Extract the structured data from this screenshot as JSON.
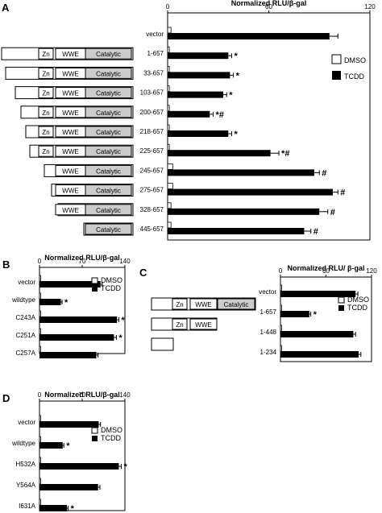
{
  "colors": {
    "tcdd": "#000000",
    "dmso": "#ffffff",
    "catalytic_fill": "#cccccc",
    "axis": "#000000"
  },
  "legend": {
    "dmso": "DMSO",
    "tcdd": "TCDD"
  },
  "domain_labels": {
    "zn": "Zn",
    "wwe": "WWE",
    "catalytic": "Catalytic"
  },
  "chart_data": [
    {
      "panel": "A",
      "type": "bar",
      "orientation": "horizontal",
      "title": "Normalized RLU/β-gal",
      "xlim": [
        0,
        120
      ],
      "ticks": [
        0,
        60,
        120
      ],
      "legend_position": "right",
      "categories": [
        "vector",
        "1-657",
        "33-657",
        "103-657",
        "200-657",
        "218-657",
        "225-657",
        "245-657",
        "275-657",
        "328-657",
        "445-657"
      ],
      "series": [
        {
          "name": "DMSO",
          "values": [
            2,
            1,
            1,
            1,
            1,
            1,
            1,
            3,
            3,
            2,
            2
          ],
          "errors": [
            0.5,
            0.3,
            0.3,
            0.3,
            0.3,
            0.3,
            0.3,
            0.8,
            0.8,
            0.5,
            0.5
          ]
        },
        {
          "name": "TCDD",
          "values": [
            96,
            36,
            37,
            33,
            25,
            36,
            61,
            87,
            98,
            90,
            81
          ],
          "errors": [
            5,
            2,
            2,
            2,
            2,
            2,
            5,
            3,
            3,
            5,
            4
          ]
        }
      ],
      "annotations": [
        "",
        "*",
        "*",
        "*",
        "*#",
        "*",
        "*#",
        "#",
        "#",
        "#",
        "#"
      ]
    },
    {
      "panel": "B",
      "type": "bar",
      "orientation": "horizontal",
      "title": "Normalized RLU/β-gal",
      "xlim": [
        0,
        140
      ],
      "ticks": [
        0,
        70,
        140
      ],
      "legend_position": "top-right",
      "categories": [
        "vector",
        "wildtype",
        "C243A",
        "C251A",
        "C257A"
      ],
      "series": [
        {
          "name": "DMSO",
          "values": [
            1,
            1,
            1,
            1,
            1
          ],
          "errors": [
            0.3,
            0.3,
            0.3,
            0.3,
            0.3
          ]
        },
        {
          "name": "TCDD",
          "values": [
            100,
            35,
            127,
            122,
            93
          ],
          "errors": [
            3,
            2,
            3,
            4,
            3
          ]
        }
      ],
      "annotations": [
        "",
        "*",
        "*",
        "*",
        ""
      ]
    },
    {
      "panel": "C",
      "type": "bar",
      "orientation": "horizontal",
      "title": "Normalized RLU/ β-gal",
      "xlim": [
        0,
        120
      ],
      "ticks": [
        0,
        60,
        120
      ],
      "legend_position": "top-right",
      "categories": [
        "vector",
        "1-657",
        "1-448",
        "1-234"
      ],
      "series": [
        {
          "name": "DMSO",
          "values": [
            1,
            1,
            1,
            1
          ],
          "errors": [
            0.3,
            0.3,
            0.3,
            0.3
          ]
        },
        {
          "name": "TCDD",
          "values": [
            99,
            38,
            96,
            103
          ],
          "errors": [
            3,
            2,
            3,
            3
          ]
        }
      ],
      "annotations": [
        "",
        "*",
        "",
        ""
      ]
    },
    {
      "panel": "D",
      "type": "bar",
      "orientation": "horizontal",
      "title": "Normalized RLU/β-gal",
      "xlim": [
        0,
        140
      ],
      "ticks": [
        0,
        70,
        140
      ],
      "legend_position": "top-right",
      "categories": [
        "vector",
        "wildtype",
        "H532A",
        "Y564A",
        "I631A"
      ],
      "series": [
        {
          "name": "DMSO",
          "values": [
            1,
            1,
            1,
            1,
            1
          ],
          "errors": [
            0.3,
            0.3,
            0.3,
            0.3,
            0.3
          ]
        },
        {
          "name": "TCDD",
          "values": [
            97,
            38,
            130,
            96,
            45
          ],
          "errors": [
            3,
            2,
            4,
            3,
            2
          ]
        }
      ],
      "annotations": [
        "",
        "*",
        "*",
        "",
        "*"
      ]
    }
  ],
  "constructs_A": [
    {
      "label": "1-657",
      "domains": [
        "zn",
        "wwe",
        "catalytic"
      ]
    },
    {
      "label": "33-657",
      "domains": [
        "zn",
        "wwe",
        "catalytic"
      ]
    },
    {
      "label": "103-657",
      "domains": [
        "zn",
        "wwe",
        "catalytic"
      ]
    },
    {
      "label": "200-657",
      "domains": [
        "zn",
        "wwe",
        "catalytic"
      ]
    },
    {
      "label": "218-657",
      "domains": [
        "zn",
        "wwe",
        "catalytic"
      ]
    },
    {
      "label": "225-657",
      "domains": [
        "zn",
        "wwe",
        "catalytic"
      ]
    },
    {
      "label": "245-657",
      "domains": [
        "wwe",
        "catalytic"
      ]
    },
    {
      "label": "275-657",
      "domains": [
        "wwe",
        "catalytic"
      ]
    },
    {
      "label": "328-657",
      "domains": [
        "wwe",
        "catalytic"
      ]
    },
    {
      "label": "445-657",
      "domains": [
        "catalytic"
      ]
    }
  ],
  "constructs_C": [
    {
      "label": "1-657",
      "domains": [
        "zn",
        "wwe",
        "catalytic"
      ]
    },
    {
      "label": "1-448",
      "domains": [
        "zn",
        "wwe"
      ]
    },
    {
      "label": "1-234",
      "domains": []
    }
  ]
}
